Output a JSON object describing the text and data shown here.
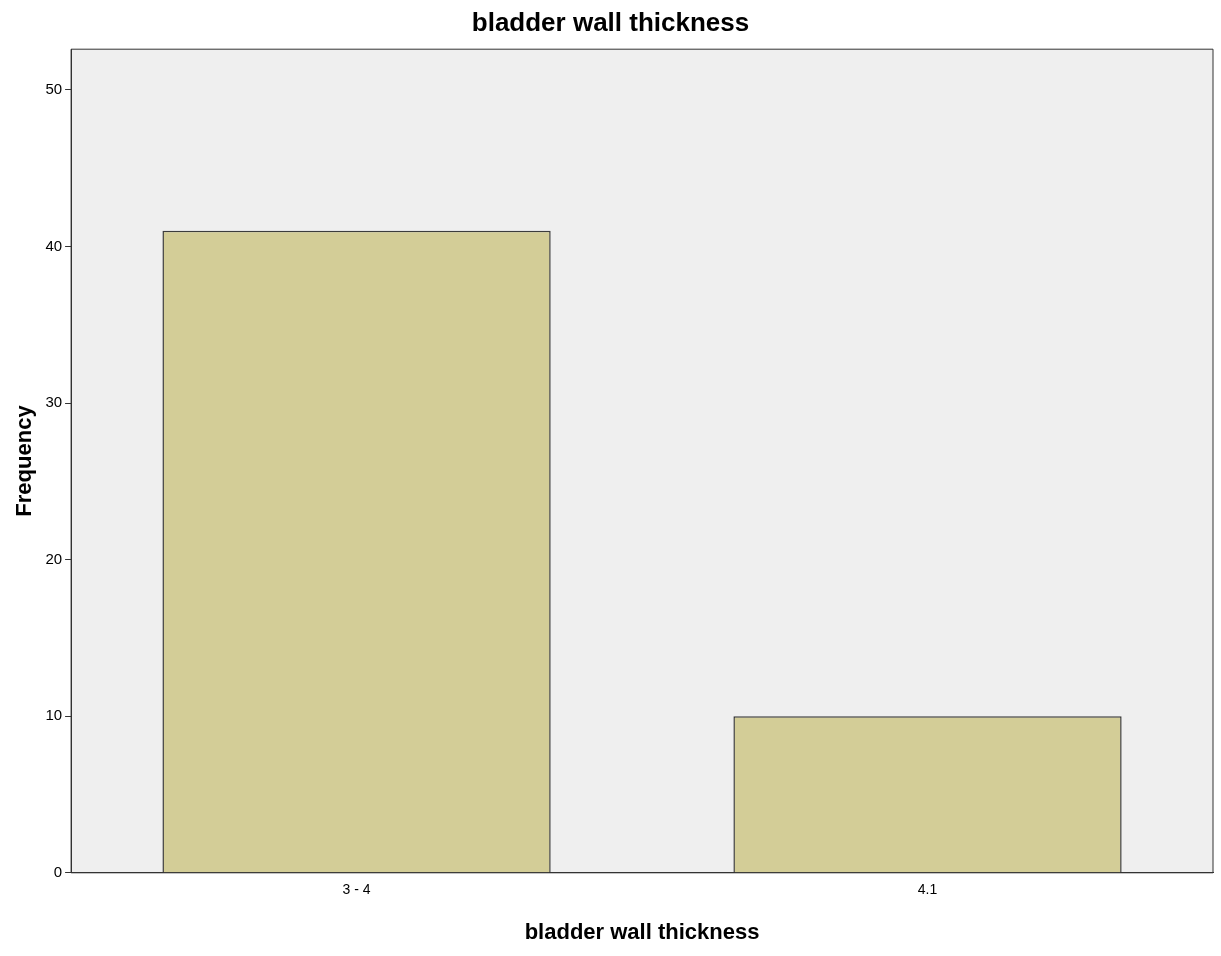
{
  "chart_data": {
    "type": "bar",
    "title": "bladder wall thickness",
    "xlabel": "bladder wall thickness",
    "ylabel": "Frequency",
    "categories": [
      "3 - 4",
      "4.1"
    ],
    "values": [
      41,
      10
    ],
    "color": "#d3cd97",
    "ylim": [
      0,
      52.6
    ],
    "yticks": [
      0,
      10,
      20,
      30,
      40,
      50
    ]
  }
}
